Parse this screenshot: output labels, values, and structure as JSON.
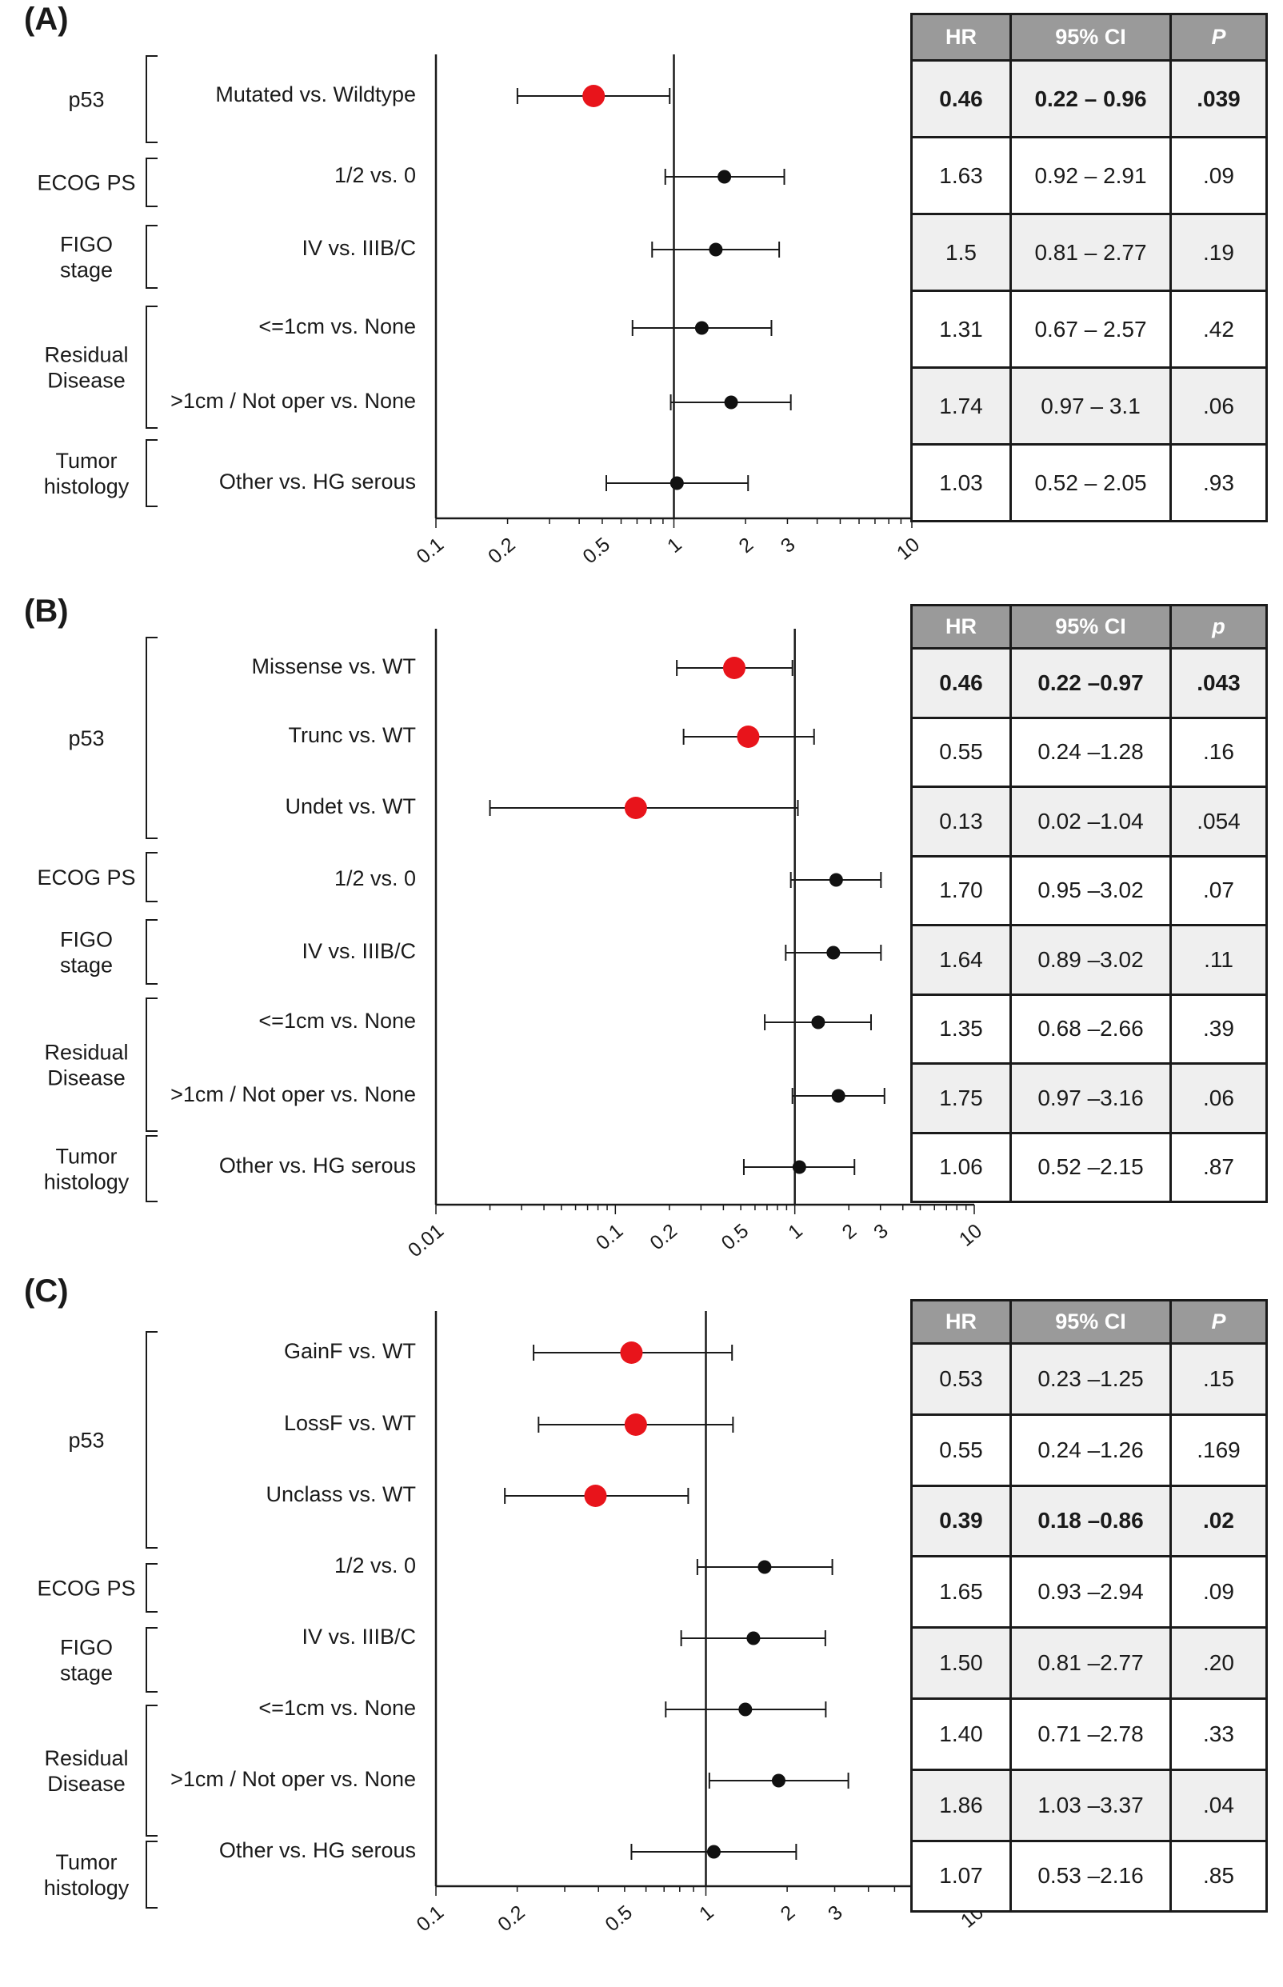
{
  "panels": [
    {
      "letter": "(A)",
      "table_header": {
        "hr": "HR",
        "ci": "95% CI",
        "p": "P"
      },
      "chart_data": {
        "type": "forest",
        "xscale": "log",
        "xlim": [
          0.1,
          10
        ],
        "xticks": [
          "0.1",
          "0.2",
          "0.5",
          "1",
          "2",
          "3",
          "10"
        ],
        "reference_line": 1,
        "groups": [
          {
            "name": "p53",
            "rows": [
              0
            ]
          },
          {
            "name": "ECOG PS",
            "rows": [
              1
            ]
          },
          {
            "name": "FIGO\nstage",
            "rows": [
              2
            ]
          },
          {
            "name": "Residual\nDisease",
            "rows": [
              3,
              4
            ]
          },
          {
            "name": "Tumor\nhistology",
            "rows": [
              5
            ]
          }
        ],
        "rows": [
          {
            "label": "Mutated  vs. Wildtype",
            "hr": 0.46,
            "lo": 0.22,
            "hi": 0.96,
            "hr_text": "0.46",
            "ci_text": "0.22 – 0.96",
            "p_text": ".039",
            "highlight": true,
            "bold": true
          },
          {
            "label": "1/2  vs. 0",
            "hr": 1.63,
            "lo": 0.92,
            "hi": 2.91,
            "hr_text": "1.63",
            "ci_text": "0.92 – 2.91",
            "p_text": ".09",
            "highlight": false,
            "bold": false
          },
          {
            "label": "IV  vs. IIIB/C",
            "hr": 1.5,
            "lo": 0.81,
            "hi": 2.77,
            "hr_text": "1.5",
            "ci_text": "0.81 – 2.77",
            "p_text": ".19",
            "highlight": false,
            "bold": false
          },
          {
            "label": "<=1cm  vs. None",
            "hr": 1.31,
            "lo": 0.67,
            "hi": 2.57,
            "hr_text": "1.31",
            "ci_text": "0.67 – 2.57",
            "p_text": ".42",
            "highlight": false,
            "bold": false
          },
          {
            "label": ">1cm / Not oper  vs. None",
            "hr": 1.74,
            "lo": 0.97,
            "hi": 3.1,
            "hr_text": "1.74",
            "ci_text": "0.97 – 3.1",
            "p_text": ".06",
            "highlight": false,
            "bold": false
          },
          {
            "label": "Other  vs. HG serous",
            "hr": 1.03,
            "lo": 0.52,
            "hi": 2.05,
            "hr_text": "1.03",
            "ci_text": "0.52 – 2.05",
            "p_text": ".93",
            "highlight": false,
            "bold": false
          }
        ]
      }
    },
    {
      "letter": "(B)",
      "table_header": {
        "hr": "HR",
        "ci": "95% CI",
        "p": "p"
      },
      "chart_data": {
        "type": "forest",
        "xscale": "log",
        "xlim": [
          0.01,
          10
        ],
        "xticks": [
          "0.01",
          "0.1",
          "0.2",
          "0.5",
          "1",
          "2",
          "3",
          "10"
        ],
        "reference_line": 1,
        "groups": [
          {
            "name": "p53",
            "rows": [
              0,
              1,
              2
            ]
          },
          {
            "name": "ECOG PS",
            "rows": [
              3
            ]
          },
          {
            "name": "FIGO\nstage",
            "rows": [
              4
            ]
          },
          {
            "name": "Residual\nDisease",
            "rows": [
              5,
              6
            ]
          },
          {
            "name": "Tumor\nhistology",
            "rows": [
              7
            ]
          }
        ],
        "rows": [
          {
            "label": "Missense vs. WT",
            "hr": 0.46,
            "lo": 0.22,
            "hi": 0.97,
            "hr_text": "0.46",
            "ci_text": "0.22 –0.97",
            "p_text": ".043",
            "highlight": true,
            "bold": true
          },
          {
            "label": "Trunc vs. WT",
            "hr": 0.55,
            "lo": 0.24,
            "hi": 1.28,
            "hr_text": "0.55",
            "ci_text": "0.24 –1.28",
            "p_text": ".16",
            "highlight": true,
            "bold": false
          },
          {
            "label": "Undet vs. WT",
            "hr": 0.13,
            "lo": 0.02,
            "hi": 1.04,
            "hr_text": "0.13",
            "ci_text": "0.02 –1.04",
            "p_text": ".054",
            "highlight": true,
            "bold": false
          },
          {
            "label": "1/2 vs. 0",
            "hr": 1.7,
            "lo": 0.95,
            "hi": 3.02,
            "hr_text": "1.70",
            "ci_text": "0.95 –3.02",
            "p_text": ".07",
            "highlight": false,
            "bold": false
          },
          {
            "label": "IV vs. IIIB/C",
            "hr": 1.64,
            "lo": 0.89,
            "hi": 3.02,
            "hr_text": "1.64",
            "ci_text": "0.89 –3.02",
            "p_text": ".11",
            "highlight": false,
            "bold": false
          },
          {
            "label": "<=1cm vs. None",
            "hr": 1.35,
            "lo": 0.68,
            "hi": 2.66,
            "hr_text": "1.35",
            "ci_text": "0.68 –2.66",
            "p_text": ".39",
            "highlight": false,
            "bold": false
          },
          {
            "label": ">1cm / Not oper vs. None",
            "hr": 1.75,
            "lo": 0.97,
            "hi": 3.16,
            "hr_text": "1.75",
            "ci_text": "0.97 –3.16",
            "p_text": ".06",
            "highlight": false,
            "bold": false
          },
          {
            "label": "Other vs. HG serous",
            "hr": 1.06,
            "lo": 0.52,
            "hi": 2.15,
            "hr_text": "1.06",
            "ci_text": "0.52 –2.15",
            "p_text": ".87",
            "highlight": false,
            "bold": false
          }
        ]
      }
    },
    {
      "letter": "(C)",
      "table_header": {
        "hr": "HR",
        "ci": "95% CI",
        "p": "P"
      },
      "chart_data": {
        "type": "forest",
        "xscale": "log",
        "xlim": [
          0.1,
          10
        ],
        "xticks": [
          "0.1",
          "0.2",
          "0.5",
          "1",
          "2",
          "3",
          "10"
        ],
        "reference_line": 1,
        "groups": [
          {
            "name": "p53",
            "rows": [
              0,
              1,
              2
            ]
          },
          {
            "name": "ECOG PS",
            "rows": [
              3
            ]
          },
          {
            "name": "FIGO\nstage",
            "rows": [
              4
            ]
          },
          {
            "name": "Residual\nDisease",
            "rows": [
              5,
              6
            ]
          },
          {
            "name": "Tumor\nhistology",
            "rows": [
              7
            ]
          }
        ],
        "rows": [
          {
            "label": "GainF vs. WT",
            "hr": 0.53,
            "lo": 0.23,
            "hi": 1.25,
            "hr_text": "0.53",
            "ci_text": "0.23 –1.25",
            "p_text": ".15",
            "highlight": true,
            "bold": false
          },
          {
            "label": "LossF vs. WT",
            "hr": 0.55,
            "lo": 0.24,
            "hi": 1.26,
            "hr_text": "0.55",
            "ci_text": "0.24 –1.26",
            "p_text": ".169",
            "highlight": true,
            "bold": false
          },
          {
            "label": "Unclass vs. WT",
            "hr": 0.39,
            "lo": 0.18,
            "hi": 0.86,
            "hr_text": "0.39",
            "ci_text": "0.18 –0.86",
            "p_text": ".02",
            "highlight": true,
            "bold": true
          },
          {
            "label": "1/2  vs. 0",
            "hr": 1.65,
            "lo": 0.93,
            "hi": 2.94,
            "hr_text": "1.65",
            "ci_text": "0.93 –2.94",
            "p_text": ".09",
            "highlight": false,
            "bold": false
          },
          {
            "label": "IV vs. IIIB/C",
            "hr": 1.5,
            "lo": 0.81,
            "hi": 2.77,
            "hr_text": "1.50",
            "ci_text": "0.81 –2.77",
            "p_text": ".20",
            "highlight": false,
            "bold": false
          },
          {
            "label": "<=1cm vs. None",
            "hr": 1.4,
            "lo": 0.71,
            "hi": 2.78,
            "hr_text": "1.40",
            "ci_text": "0.71 –2.78",
            "p_text": ".33",
            "highlight": false,
            "bold": false
          },
          {
            "label": ">1cm / Not oper vs. None",
            "hr": 1.86,
            "lo": 1.03,
            "hi": 3.37,
            "hr_text": "1.86",
            "ci_text": "1.03 –3.37",
            "p_text": ".04",
            "highlight": false,
            "bold": false
          },
          {
            "label": "Other vs. HG serous",
            "hr": 1.07,
            "lo": 0.53,
            "hi": 2.16,
            "hr_text": "1.07",
            "ci_text": "0.53 –2.16",
            "p_text": ".85",
            "highlight": false,
            "bold": false
          }
        ]
      }
    }
  ],
  "colors": {
    "highlight": "#e8141b",
    "point": "#111111",
    "header_bg": "#9a9a9a",
    "shade_row": "#efefef"
  }
}
